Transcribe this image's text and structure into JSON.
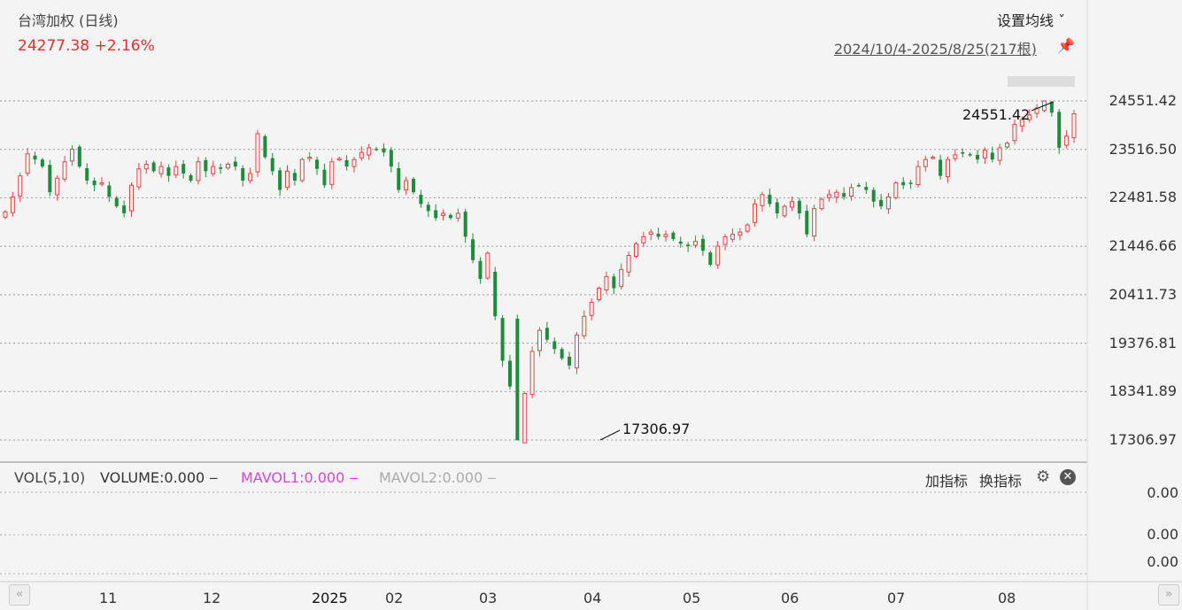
{
  "header": {
    "title": "台湾加权 (日线)",
    "price_line": "24277.38  +2.16%",
    "ma_setting_label": "设置均线 ˇ",
    "range_label": "2024/10/4-2025/8/25(217根)",
    "pin_icon": "pin-icon"
  },
  "chart_data": {
    "type": "candlestick",
    "y_ticks": [
      "24551.42",
      "23516.50",
      "22481.58",
      "21446.66",
      "20411.73",
      "19376.81",
      "18341.89",
      "17306.97"
    ],
    "ylim": [
      17306.97,
      24551.42
    ],
    "x_ticks": [
      "11",
      "12",
      "2025",
      "02",
      "03",
      "04",
      "05",
      "06",
      "07",
      "08"
    ],
    "max_annotation": "24551.42",
    "min_annotation": "17306.97",
    "colors": {
      "up": "#e04545",
      "down": "#1e8c3a"
    },
    "close_path": [
      22180,
      22500,
      22950,
      23420,
      23300,
      23150,
      22600,
      22900,
      23250,
      23520,
      23150,
      22850,
      22750,
      22800,
      22500,
      22300,
      22150,
      22750,
      23100,
      23200,
      23050,
      23150,
      22950,
      23150,
      23000,
      22850,
      23250,
      23050,
      23150,
      23100,
      23200,
      23150,
      22850,
      23000,
      23850,
      23350,
      23050,
      22650,
      23050,
      22850,
      23300,
      23350,
      23100,
      22750,
      23250,
      23320,
      23150,
      23300,
      23450,
      23550,
      23520,
      23450,
      23150,
      22650,
      22850,
      22600,
      22350,
      22200,
      22050,
      22150,
      22050,
      22150,
      21650,
      21150,
      20750,
      21300,
      19950,
      19000,
      18450,
      17300,
      18300,
      19200,
      19650,
      19450,
      19250,
      19050,
      18900,
      19550,
      19950,
      20250,
      20550,
      20800,
      20550,
      20950,
      21250,
      21500,
      21650,
      21750,
      21650,
      21700,
      21600,
      21500,
      21450,
      21550,
      21350,
      21050,
      21450,
      21650,
      21700,
      21750,
      21900,
      22350,
      22550,
      22350,
      22150,
      22300,
      22400,
      22150,
      21700,
      22250,
      22450,
      22550,
      22600,
      22500,
      22700,
      22750,
      22650,
      22400,
      22300,
      22500,
      22800,
      22750,
      22800,
      23150,
      23300,
      23350,
      22950,
      23300,
      23400,
      23450,
      23400,
      23300,
      23500,
      23300,
      23550,
      23650,
      24050,
      24150,
      24250,
      24400,
      24550,
      24300,
      23550,
      23800,
      24277
    ]
  },
  "volume": {
    "label": "VOL(5,10)",
    "volume": "VOLUME:0.000 ‒",
    "mavol1": "MAVOL1:0.000 ‒",
    "mavol2": "MAVOL2:0.000 ‒",
    "add_indicator": "加指标",
    "change_indicator": "换指标",
    "axis": [
      "0.00",
      "0.00",
      "0.00"
    ]
  },
  "nav": {
    "left": "«",
    "right": "»"
  }
}
